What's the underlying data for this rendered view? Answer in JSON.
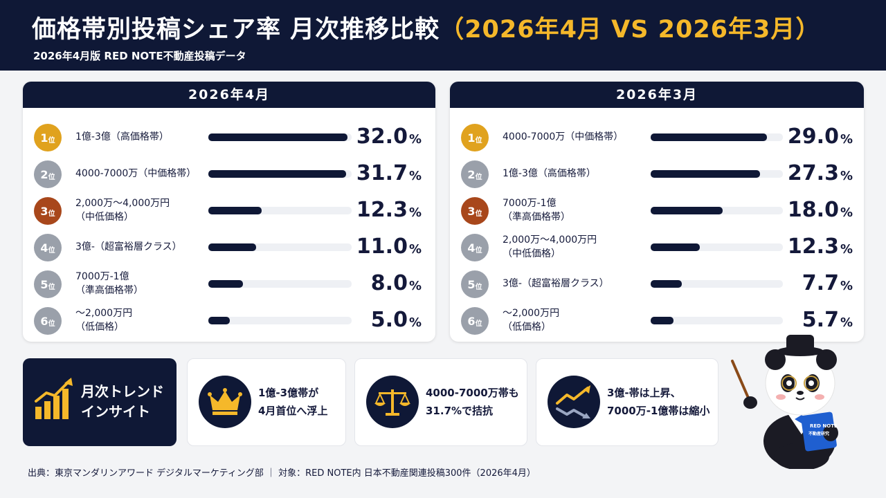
{
  "header": {
    "title_main": "価格帯別投稿シェア率 月次推移比較",
    "title_highlight": "（2026年4月 VS 2026年3月）",
    "subtitle": "2026年4月版 RED NOTE不動産投稿データ"
  },
  "colors": {
    "navy": "#0f1836",
    "gold": "#f5b82a",
    "rank1": "#e0a21e",
    "rank2": "#9aa0aa",
    "rank3": "#a8471b",
    "rank_other": "#9aa0aa"
  },
  "rank_suffix": "位",
  "unit": "%",
  "chart_data": [
    {
      "type": "bar",
      "title": "2026年4月",
      "ranks": [
        1,
        2,
        3,
        4,
        5,
        6
      ],
      "categories": [
        [
          "1億-3億（高価格帯）"
        ],
        [
          "4000-7000万（中価格帯）"
        ],
        [
          "2,000万〜4,000万円",
          "（中低価格）"
        ],
        [
          "3億-（超富裕層クラス）"
        ],
        [
          "7000万-1億",
          "（準高価格帯）"
        ],
        [
          "〜2,000万円",
          "（低価格）"
        ]
      ],
      "values": [
        32.0,
        31.7,
        12.3,
        11.0,
        8.0,
        5.0
      ],
      "unit": "%"
    },
    {
      "type": "bar",
      "title": "2026年3月",
      "ranks": [
        1,
        2,
        3,
        4,
        5,
        6
      ],
      "categories": [
        [
          "4000-7000万（中価格帯）"
        ],
        [
          "1億-3億（高価格帯）"
        ],
        [
          "7000万-1億",
          "（準高価格帯）"
        ],
        [
          "2,000万〜4,000万円",
          "（中低価格）"
        ],
        [
          "3億-（超富裕層クラス）"
        ],
        [
          "〜2,000万円",
          "（低価格）"
        ]
      ],
      "values": [
        29.0,
        27.3,
        18.0,
        12.3,
        7.7,
        5.7
      ],
      "unit": "%"
    }
  ],
  "insights": {
    "title_line1": "月次トレンド",
    "title_line2": "インサイト",
    "cards": [
      {
        "icon": "crown-icon",
        "line1": "1億-3億帯が",
        "line2": "4月首位へ浮上"
      },
      {
        "icon": "scale-icon",
        "line1": "4000-7000万帯も",
        "line2": "31.7%で拮抗"
      },
      {
        "icon": "trend-up-down-icon",
        "line1": "3億-帯は上昇、",
        "line2": "7000万-1億帯は縮小"
      }
    ]
  },
  "footer": "出典：東京マンダリンアワード デジタルマーケティング部 ｜ 対象：RED NOTE内 日本不動産関連投稿300件（2026年4月）",
  "mascot": {
    "book_line1": "RED NOTE",
    "book_line2": "不動産研究"
  }
}
